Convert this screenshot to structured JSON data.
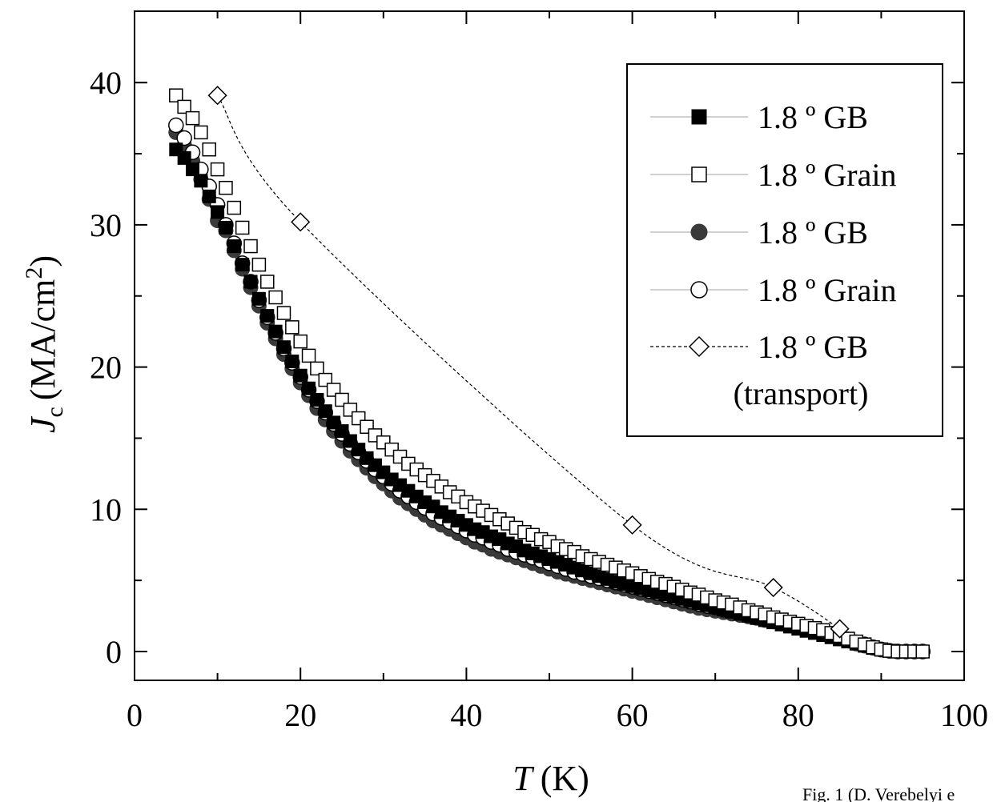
{
  "chart_data": {
    "type": "scatter",
    "xlabel": "T",
    "xlabel_unit": "(K)",
    "ylabel": "J",
    "ylabel_sub": "c",
    "ylabel_unit": "(MA/cm",
    "ylabel_sup": "2",
    "ylabel_close": ")",
    "xlim": [
      0,
      100
    ],
    "ylim": [
      -2,
      45
    ],
    "xticks": [
      0,
      20,
      40,
      60,
      80,
      100
    ],
    "xtick_labels": [
      "0",
      "20",
      "40",
      "60",
      "80",
      "100"
    ],
    "yticks": [
      0,
      10,
      20,
      30,
      40
    ],
    "ytick_labels": [
      "0",
      "10",
      "20",
      "30",
      "40"
    ],
    "legend_position": "top-right",
    "grid": false,
    "colors": {
      "black": "#000000",
      "dark_gray": "#3a3a3a",
      "white": "#ffffff",
      "line_gray": "#b4b4b4"
    },
    "series": [
      {
        "name": "1.8 º GB",
        "marker": "square-filled",
        "x": [
          5,
          6,
          7,
          8,
          9,
          10,
          11,
          12,
          13,
          14,
          15,
          16,
          17,
          18,
          19,
          20,
          21,
          22,
          23,
          24,
          25,
          26,
          27,
          28,
          29,
          30,
          31,
          32,
          33,
          34,
          35,
          36,
          37,
          38,
          39,
          40,
          41,
          42,
          43,
          44,
          45,
          46,
          47,
          48,
          49,
          50,
          51,
          52,
          53,
          54,
          55,
          56,
          57,
          58,
          59,
          60,
          61,
          62,
          63,
          64,
          65,
          66,
          67,
          68,
          69,
          70,
          71,
          72,
          73,
          74,
          75,
          76,
          77,
          78,
          79,
          80,
          81,
          82,
          83,
          84,
          85,
          86,
          87,
          88,
          89,
          90,
          91,
          92,
          93,
          94,
          95
        ],
        "y": [
          35.3,
          34.7,
          33.9,
          33.1,
          32.0,
          30.9,
          29.8,
          28.5,
          27.2,
          26.0,
          24.8,
          23.6,
          22.5,
          21.4,
          20.4,
          19.4,
          18.5,
          17.7,
          16.9,
          16.1,
          15.5,
          14.8,
          14.2,
          13.6,
          13.1,
          12.6,
          12.1,
          11.7,
          11.3,
          10.9,
          10.5,
          10.2,
          9.8,
          9.5,
          9.2,
          8.9,
          8.6,
          8.4,
          8.1,
          7.9,
          7.6,
          7.4,
          7.1,
          6.9,
          6.7,
          6.5,
          6.3,
          6.1,
          5.9,
          5.7,
          5.5,
          5.3,
          5.1,
          4.9,
          4.75,
          4.6,
          4.45,
          4.3,
          4.15,
          4.0,
          3.85,
          3.7,
          3.55,
          3.4,
          3.25,
          3.1,
          2.95,
          2.8,
          2.65,
          2.5,
          2.35,
          2.2,
          2.05,
          1.9,
          1.75,
          1.6,
          1.45,
          1.3,
          1.15,
          1.0,
          0.85,
          0.7,
          0.55,
          0.4,
          0.25,
          0.12,
          0.05,
          0.0,
          0.0,
          0.0,
          0.0
        ]
      },
      {
        "name": "1.8 º Grain",
        "marker": "square-open",
        "x": [
          5,
          6,
          7,
          8,
          9,
          10,
          11,
          12,
          13,
          14,
          15,
          16,
          17,
          18,
          19,
          20,
          21,
          22,
          23,
          24,
          25,
          26,
          27,
          28,
          29,
          30,
          31,
          32,
          33,
          34,
          35,
          36,
          37,
          38,
          39,
          40,
          41,
          42,
          43,
          44,
          45,
          46,
          47,
          48,
          49,
          50,
          51,
          52,
          53,
          54,
          55,
          56,
          57,
          58,
          59,
          60,
          61,
          62,
          63,
          64,
          65,
          66,
          67,
          68,
          69,
          70,
          71,
          72,
          73,
          74,
          75,
          76,
          77,
          78,
          79,
          80,
          81,
          82,
          83,
          84,
          85,
          86,
          87,
          88,
          89,
          90,
          91,
          92,
          93,
          94,
          95
        ],
        "y": [
          39.1,
          38.3,
          37.5,
          36.5,
          35.3,
          33.9,
          32.6,
          31.2,
          29.8,
          28.5,
          27.2,
          26.0,
          24.9,
          23.8,
          22.8,
          21.8,
          20.8,
          19.9,
          19.1,
          18.4,
          17.7,
          17.0,
          16.4,
          15.8,
          15.2,
          14.7,
          14.2,
          13.7,
          13.2,
          12.8,
          12.4,
          12.0,
          11.6,
          11.2,
          10.9,
          10.5,
          10.2,
          9.9,
          9.6,
          9.3,
          9.0,
          8.7,
          8.4,
          8.2,
          7.9,
          7.7,
          7.4,
          7.2,
          7.0,
          6.7,
          6.5,
          6.3,
          6.1,
          5.9,
          5.7,
          5.5,
          5.3,
          5.1,
          4.9,
          4.75,
          4.55,
          4.35,
          4.15,
          4.0,
          3.8,
          3.6,
          3.45,
          3.3,
          3.1,
          2.9,
          2.75,
          2.6,
          2.4,
          2.25,
          2.1,
          1.95,
          1.8,
          1.65,
          1.5,
          1.3,
          1.1,
          0.9,
          0.7,
          0.5,
          0.3,
          0.15,
          0.05,
          0.0,
          0.0,
          0.0,
          0.0
        ]
      },
      {
        "name": "1.8 º GB",
        "marker": "circle-filled",
        "x": [
          5,
          6,
          7,
          8,
          9,
          10,
          11,
          12,
          13,
          14,
          15,
          16,
          17,
          18,
          19,
          20,
          21,
          22,
          23,
          24,
          25,
          26,
          27,
          28,
          29,
          30,
          31,
          32,
          33,
          34,
          35,
          36,
          37,
          38,
          39,
          40,
          41,
          42,
          43,
          44,
          45,
          46,
          47,
          48,
          49,
          50,
          51,
          52,
          53,
          54,
          55,
          56,
          57,
          58,
          59,
          60,
          61,
          62,
          63,
          64,
          65,
          66,
          67,
          68,
          69,
          70,
          71,
          72,
          73,
          74,
          75,
          76,
          77,
          78,
          79,
          80,
          81,
          82,
          83,
          84,
          85,
          86,
          87,
          88,
          89,
          90,
          91,
          92,
          93,
          94,
          95
        ],
        "y": [
          36.5,
          35.6,
          34.5,
          33.2,
          31.8,
          30.3,
          29.6,
          28.2,
          26.9,
          25.6,
          24.3,
          23.1,
          22.0,
          20.9,
          19.9,
          18.9,
          18.0,
          17.1,
          16.3,
          15.5,
          14.8,
          14.1,
          13.5,
          12.9,
          12.3,
          11.8,
          11.3,
          10.8,
          10.4,
          10.0,
          9.6,
          9.2,
          8.9,
          8.6,
          8.3,
          8.0,
          7.7,
          7.5,
          7.2,
          7.0,
          6.8,
          6.6,
          6.4,
          6.2,
          6.0,
          5.8,
          5.6,
          5.45,
          5.3,
          5.15,
          5.0,
          4.85,
          4.7,
          4.55,
          4.4,
          4.25,
          4.1,
          3.95,
          3.8,
          3.65,
          3.5,
          3.35,
          3.2,
          3.05,
          2.95,
          2.85,
          2.75,
          2.65,
          2.55,
          2.45,
          2.35,
          2.2,
          2.1,
          1.95,
          1.85,
          1.7,
          1.55,
          1.4,
          1.25,
          1.1,
          0.9,
          0.75,
          0.55,
          0.4,
          0.25,
          0.12,
          0.05,
          0.0,
          0.0,
          0.0,
          0.0
        ]
      },
      {
        "name": "1.8 º Grain",
        "marker": "circle-open",
        "x": [
          5,
          6,
          7,
          8,
          9,
          10,
          11,
          12,
          13,
          14,
          15,
          16,
          17,
          18,
          19,
          20,
          21,
          22,
          23,
          24,
          25,
          26,
          27,
          28,
          29,
          30,
          31,
          32,
          33,
          34,
          35,
          36,
          37,
          38,
          39,
          40,
          41,
          42,
          43,
          44,
          45,
          46,
          47,
          48,
          49,
          50,
          51,
          52,
          53,
          54,
          55,
          56,
          57,
          58,
          59,
          60,
          61,
          62,
          63,
          64,
          65,
          66,
          67,
          68,
          69,
          70,
          71,
          72,
          73,
          74,
          75,
          76,
          77,
          78,
          79,
          80,
          81,
          82,
          83,
          84,
          85,
          86,
          87,
          88,
          89,
          90,
          91,
          92,
          93,
          94,
          95
        ],
        "y": [
          37.0,
          36.1,
          35.1,
          33.9,
          32.7,
          31.4,
          30.0,
          28.7,
          27.3,
          26.0,
          24.7,
          23.5,
          22.4,
          21.3,
          20.3,
          19.3,
          18.4,
          17.6,
          16.8,
          16.0,
          15.3,
          14.6,
          14.0,
          13.4,
          12.8,
          12.3,
          11.8,
          11.3,
          10.9,
          10.5,
          10.1,
          9.7,
          9.4,
          9.1,
          8.8,
          8.5,
          8.2,
          8.0,
          7.7,
          7.5,
          7.2,
          7.0,
          6.8,
          6.6,
          6.4,
          6.2,
          6.0,
          5.8,
          5.6,
          5.45,
          5.3,
          5.15,
          5.0,
          4.85,
          4.7,
          4.55,
          4.4,
          4.25,
          4.1,
          3.95,
          3.8,
          3.65,
          3.5,
          3.35,
          3.2,
          3.1,
          2.95,
          2.85,
          2.75,
          2.6,
          2.5,
          2.35,
          2.2,
          2.05,
          1.95,
          1.8,
          1.65,
          1.5,
          1.35,
          1.2,
          1.0,
          0.85,
          0.65,
          0.5,
          0.3,
          0.15,
          0.05,
          0.0,
          0.0,
          0.0,
          0.0
        ]
      },
      {
        "name": "1.8 º GB",
        "name_line2": "(transport)",
        "marker": "diamond-open",
        "line": "dashed",
        "x": [
          10,
          20,
          60,
          77,
          85
        ],
        "y": [
          39.1,
          30.2,
          8.9,
          4.5,
          1.6
        ]
      }
    ]
  },
  "caption": "Fig. 1 (D. Verebelyi e"
}
